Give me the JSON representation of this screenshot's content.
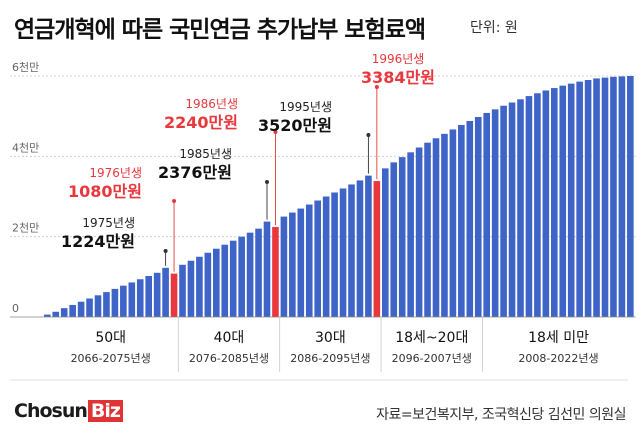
{
  "title": "연금개혁에 따른 국민연금 추가납부 보험료액",
  "unit_label": "단위: 원",
  "source": "자료=보건복지부, 조국혁신당 김선민 의원실",
  "brand": {
    "name": "Chosun",
    "suffix": "Biz"
  },
  "colors": {
    "bar": "#3f64c8",
    "highlight": "#e8383d",
    "text": "#111111",
    "red_text": "#e8383d"
  },
  "chart_data": {
    "type": "bar",
    "ylim": [
      0,
      6000
    ],
    "y_ticks": [
      {
        "value": 0,
        "label": "0"
      },
      {
        "value": 2000,
        "label": "2천만"
      },
      {
        "value": 4000,
        "label": "4천만"
      },
      {
        "value": 6000,
        "label": "6천만"
      }
    ],
    "grid": true,
    "values": [
      60,
      130,
      220,
      300,
      380,
      460,
      540,
      620,
      700,
      780,
      860,
      940,
      1020,
      1100,
      1224,
      1080,
      1300,
      1400,
      1500,
      1600,
      1700,
      1800,
      1900,
      2000,
      2100,
      2200,
      2376,
      2240,
      2500,
      2600,
      2700,
      2800,
      2900,
      3000,
      3100,
      3200,
      3300,
      3400,
      3520,
      3384,
      3700,
      3850,
      3980,
      4100,
      4220,
      4340,
      4450,
      4560,
      4670,
      4780,
      4880,
      4980,
      5080,
      5170,
      5260,
      5340,
      5420,
      5500,
      5570,
      5640,
      5700,
      5760,
      5810,
      5860,
      5900,
      5940,
      5960,
      5980,
      5990,
      6000
    ],
    "highlighted": [
      15,
      27,
      39
    ],
    "callouts": [
      {
        "bar": 14,
        "year": "1975년생",
        "amount": "1224만원",
        "color": "dark"
      },
      {
        "bar": 15,
        "year": "1976년생",
        "amount": "1080만원",
        "color": "red"
      },
      {
        "bar": 26,
        "year": "1985년생",
        "amount": "2376만원",
        "color": "dark"
      },
      {
        "bar": 27,
        "year": "1986년생",
        "amount": "2240만원",
        "color": "red"
      },
      {
        "bar": 38,
        "year": "1995년생",
        "amount": "3520만원",
        "color": "dark"
      },
      {
        "bar": 39,
        "year": "1996년생",
        "amount": "3384만원",
        "color": "red"
      }
    ],
    "groups": [
      {
        "label": "50대",
        "years": "2066-2075년생",
        "start": 0,
        "end": 15
      },
      {
        "label": "40대",
        "years": "2076-2085년생",
        "start": 16,
        "end": 27
      },
      {
        "label": "30대",
        "years": "2086-2095년생",
        "start": 28,
        "end": 39
      },
      {
        "label": "18세~20대",
        "years": "2096-2007년생",
        "start": 40,
        "end": 51
      },
      {
        "label": "18세 미만",
        "years": "2008-2022년생",
        "start": 52,
        "end": 69
      }
    ]
  }
}
